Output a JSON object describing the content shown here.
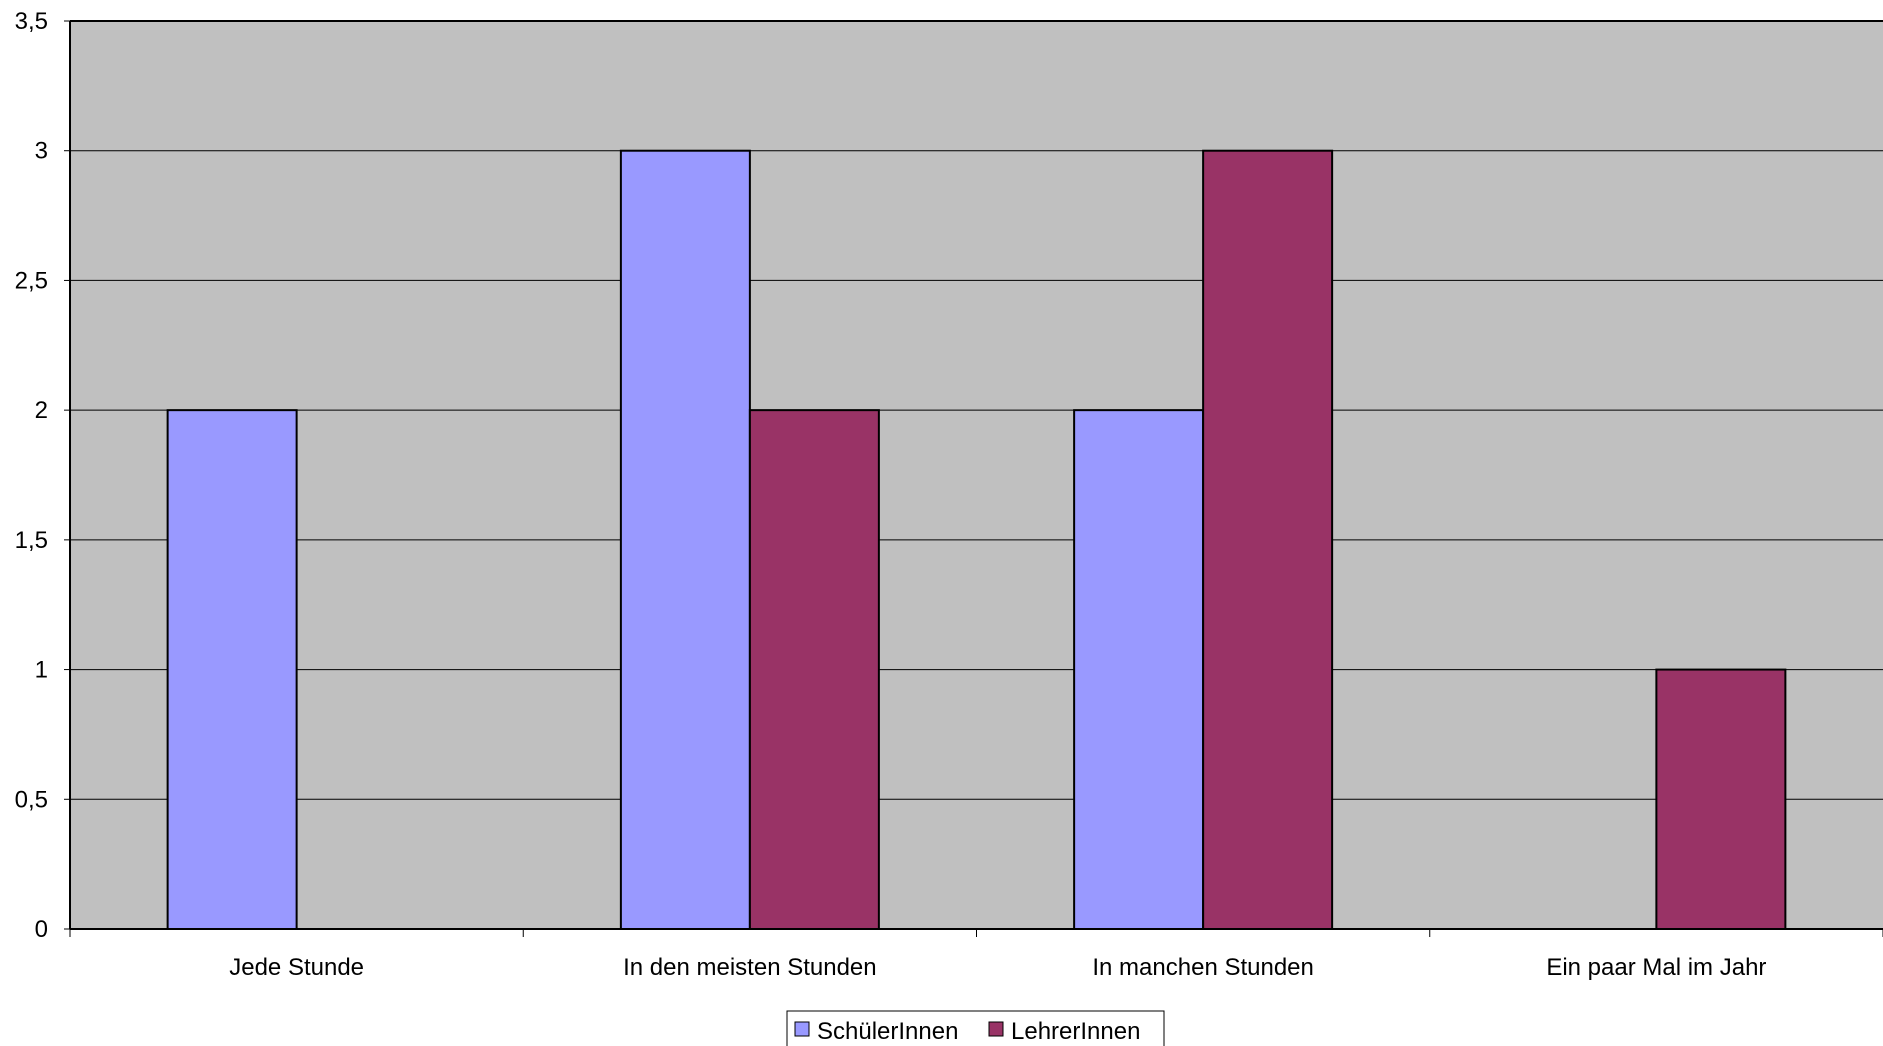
{
  "chart_data": {
    "type": "bar",
    "categories": [
      "Jede Stunde",
      "In den meisten Stunden",
      "In manchen Stunden",
      "Ein paar Mal im Jahr"
    ],
    "series": [
      {
        "name": "SchülerInnen",
        "values": [
          2,
          3,
          2,
          0
        ],
        "color": "#9999FF"
      },
      {
        "name": "LehrerInnen",
        "values": [
          0,
          2,
          3,
          1
        ],
        "color": "#993366"
      }
    ],
    "title": "",
    "xlabel": "",
    "ylabel": "",
    "ylim": [
      0,
      3.5
    ],
    "y_ticks": [
      "0",
      "0,5",
      "1",
      "1,5",
      "2",
      "2,5",
      "3",
      "3,5"
    ],
    "grid": true,
    "legend_position": "bottom",
    "plot_background": "#C0C0C0",
    "gridline_color": "#000000"
  }
}
